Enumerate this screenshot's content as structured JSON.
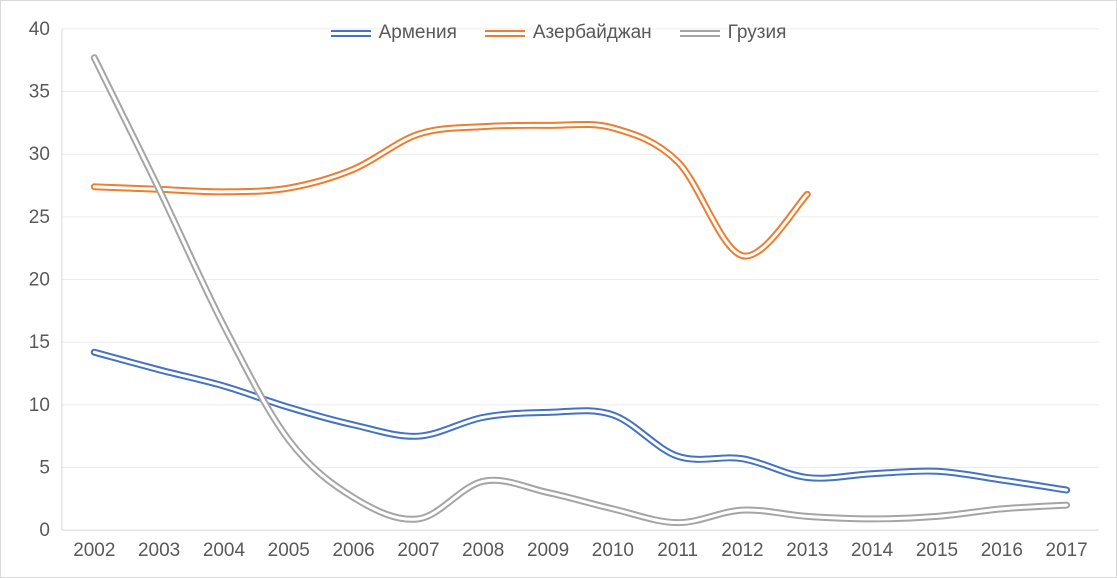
{
  "chart_data": {
    "type": "line",
    "smooth": true,
    "title": "",
    "xlabel": "",
    "ylabel": "",
    "categories": [
      "2002",
      "2003",
      "2004",
      "2005",
      "2006",
      "2007",
      "2008",
      "2009",
      "2010",
      "2011",
      "2012",
      "2013",
      "2014",
      "2015",
      "2016",
      "2017"
    ],
    "series": [
      {
        "name": "Армения",
        "key": "armenia",
        "color": "#4472C4",
        "values": [
          14.2,
          12.8,
          11.5,
          9.8,
          8.4,
          7.5,
          9.0,
          9.4,
          9.2,
          5.9,
          5.7,
          4.2,
          4.5,
          4.7,
          4.0,
          3.2
        ]
      },
      {
        "name": "Азербайджан",
        "key": "azerbaijan",
        "color": "#ED7D31",
        "values": [
          27.4,
          27.2,
          27.0,
          27.3,
          28.8,
          31.6,
          32.2,
          32.3,
          32.1,
          29.4,
          21.9,
          26.8,
          null,
          null,
          null,
          null
        ]
      },
      {
        "name": "Грузия",
        "key": "georgia",
        "color": "#A5A5A5",
        "values": [
          37.7,
          27.2,
          16.3,
          7.2,
          2.6,
          0.9,
          3.9,
          3.0,
          1.7,
          0.6,
          1.6,
          1.1,
          0.9,
          1.1,
          1.7,
          2.0
        ]
      }
    ],
    "ylim": [
      0,
      40
    ],
    "y_ticks": [
      0,
      5,
      10,
      15,
      20,
      25,
      30,
      35,
      40
    ],
    "grid": true,
    "legend_position": "top"
  },
  "colors": {
    "background": "#FFFFFF",
    "border": "#D9D9D9",
    "gridline": "#ECECEC",
    "axis_line": "#D9D9D9",
    "axis_text": "#595959"
  }
}
